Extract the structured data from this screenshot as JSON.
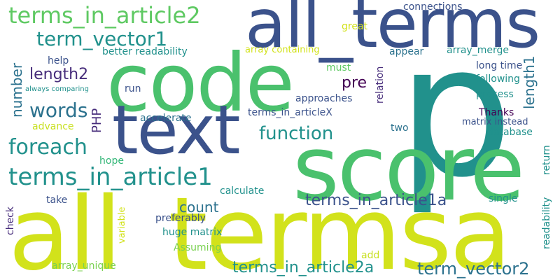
{
  "palette": {
    "navy": "#3b528b",
    "teal": "#21918c",
    "tealdark": "#2c728e",
    "green": "#5ec962",
    "lime": "#c8e020",
    "yellow": "#d2e21b",
    "purple": "#472d7b",
    "dark": "#440154",
    "sea": "#35b779",
    "blue": "#31688e",
    "mint": "#7ad151"
  },
  "words": [
    {
      "text": "p",
      "color": "#21918c"
    },
    {
      "text": "all_termsa",
      "color": "#d2e21b"
    },
    {
      "text": "all_terms",
      "color": "#3b528b"
    },
    {
      "text": "code",
      "color": "#4ac16d"
    },
    {
      "text": "score",
      "color": "#4ac16d"
    },
    {
      "text": "text",
      "color": "#3b528b"
    },
    {
      "text": "terms_in_article2",
      "color": "#5ec962"
    },
    {
      "text": "term_vector1",
      "color": "#21918c"
    },
    {
      "text": "terms_in_article1",
      "color": "#21918c"
    },
    {
      "text": "foreach",
      "color": "#21918c"
    },
    {
      "text": "words",
      "color": "#2c728e"
    },
    {
      "text": "function",
      "color": "#21918c"
    },
    {
      "text": "terms_in_article1a",
      "color": "#3b528b"
    },
    {
      "text": "term_vector2",
      "color": "#2c728e"
    },
    {
      "text": "terms_in_article2a",
      "color": "#21918c"
    },
    {
      "text": "length2",
      "color": "#472d7b"
    },
    {
      "text": "length1",
      "color": "#2c728e"
    },
    {
      "text": "number",
      "color": "#2c728e"
    },
    {
      "text": "pre",
      "color": "#440154"
    },
    {
      "text": "count",
      "color": "#2c728e"
    },
    {
      "text": "PHP",
      "color": "#472d7b"
    },
    {
      "text": "connections",
      "color": "#3b528b"
    },
    {
      "text": "great",
      "color": "#d2e21b"
    },
    {
      "text": "better readability",
      "color": "#21918c"
    },
    {
      "text": "array containing",
      "color": "#d2e21b"
    },
    {
      "text": "appear",
      "color": "#2c728e"
    },
    {
      "text": "array_merge",
      "color": "#21918c"
    },
    {
      "text": "long time",
      "color": "#3b528b"
    },
    {
      "text": "help",
      "color": "#3b528b"
    },
    {
      "text": "must",
      "color": "#5ec962"
    },
    {
      "text": "following",
      "color": "#21918c"
    },
    {
      "text": "always comparing",
      "color": "#21918c"
    },
    {
      "text": "run",
      "color": "#3b528b"
    },
    {
      "text": "approaches",
      "color": "#3b528b"
    },
    {
      "text": "process",
      "color": "#21918c"
    },
    {
      "text": "relation",
      "color": "#472d7b"
    },
    {
      "text": "Thanks",
      "color": "#440154"
    },
    {
      "text": "terms_in_articleX",
      "color": "#3b528b"
    },
    {
      "text": "accelerate",
      "color": "#2c728e"
    },
    {
      "text": "matrix instead",
      "color": "#3b528b"
    },
    {
      "text": "advance",
      "color": "#c8e020"
    },
    {
      "text": "two",
      "color": "#2c728e"
    },
    {
      "text": "database",
      "color": "#21918c"
    },
    {
      "text": "return",
      "color": "#21918c"
    },
    {
      "text": "hope",
      "color": "#35b779"
    },
    {
      "text": "readability",
      "color": "#21918c"
    },
    {
      "text": "calculate",
      "color": "#21918c"
    },
    {
      "text": "take",
      "color": "#3b528b"
    },
    {
      "text": "preferably",
      "color": "#3b528b"
    },
    {
      "text": "single",
      "color": "#21918c"
    },
    {
      "text": "check",
      "color": "#472d7b"
    },
    {
      "text": "variable",
      "color": "#d2e21b"
    },
    {
      "text": "huge matrix",
      "color": "#21918c"
    },
    {
      "text": "Assuming",
      "color": "#7ad151"
    },
    {
      "text": "add",
      "color": "#c8e020"
    },
    {
      "text": "array_unique",
      "color": "#7ad151"
    }
  ]
}
